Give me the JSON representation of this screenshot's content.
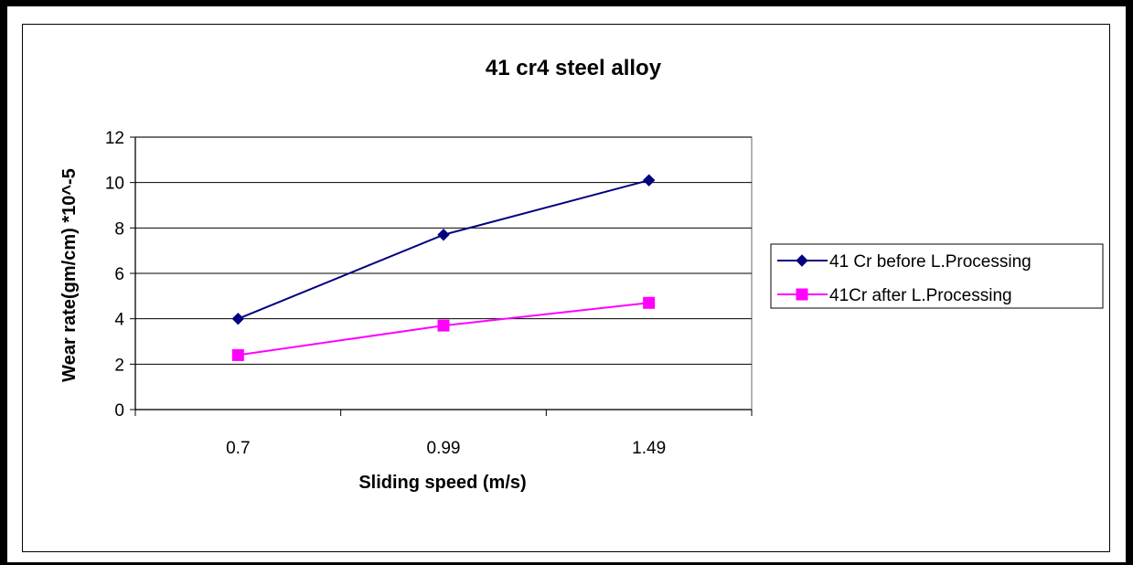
{
  "chart_data": {
    "type": "line",
    "title": "41 cr4 steel alloy",
    "xlabel": "Sliding speed (m/s)",
    "ylabel": "Wear rate(gm/cm) *10^-5",
    "categories": [
      "0.7",
      "0.99",
      "1.49"
    ],
    "ylim": [
      0,
      12
    ],
    "yticks": [
      "0",
      "2",
      "4",
      "6",
      "8",
      "10",
      "12"
    ],
    "grid": "horizontal",
    "legend_position": "right",
    "series": [
      {
        "name": "41 Cr before L.Processing",
        "values": [
          4.0,
          7.7,
          10.1
        ],
        "color": "#000080",
        "marker": "diamond"
      },
      {
        "name": "41Cr after L.Processing",
        "values": [
          2.4,
          3.7,
          4.7
        ],
        "color": "#FF00FF",
        "marker": "square"
      }
    ]
  }
}
